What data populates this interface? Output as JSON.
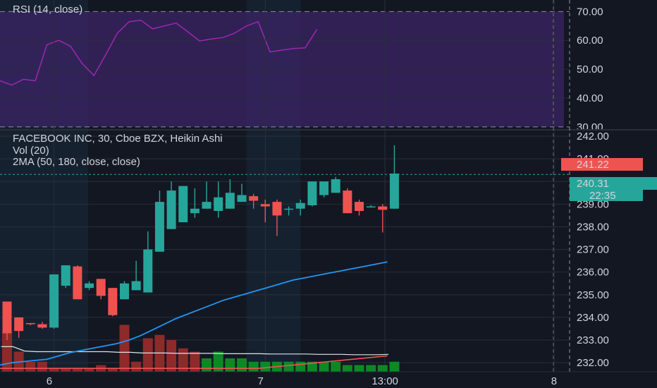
{
  "colors": {
    "background": "#131722",
    "grid": "#2a2e39",
    "up": "#26a69a",
    "down": "#ef5350",
    "rsi_line": "#9c27b0",
    "rsi_band": "#3b2466",
    "vol_up": "#0b8a23",
    "vol_down": "#8e2a2a",
    "ma_fast": "#2196f3",
    "ma_slow": "#ef5350",
    "vol_ma": "#e0e3eb",
    "session_shade": "#1a2a3d"
  },
  "chart_data": [
    {
      "type": "line",
      "title": "RSI (14, close)",
      "ylim": [
        29,
        74
      ],
      "y_ticks": [
        "70.00",
        "60.00",
        "50.00",
        "40.00",
        "30.00"
      ],
      "y_tick_values": [
        70,
        60,
        50,
        40,
        30
      ],
      "band": [
        30,
        70
      ],
      "series": [
        {
          "values": [
            46,
            44.5,
            46.5,
            46,
            58.5,
            60,
            58,
            52,
            47.8,
            55,
            62.5,
            66.5,
            67,
            64,
            65,
            66,
            63,
            59.8,
            60.5,
            61,
            62.5,
            65,
            66.5,
            56,
            56.6,
            57.2,
            57.4,
            63.8
          ]
        }
      ]
    },
    {
      "type": "candlestick",
      "title": "FACEBOOK INC, 30, Cboe BZX, Heikin Ashi",
      "indicators": [
        "Vol (20)",
        "2MA (50, 180, close, close)"
      ],
      "ylim": [
        231.6,
        242.25
      ],
      "y_ticks": [
        "242.00",
        "241.00",
        "240.00",
        "239.00",
        "238.00",
        "237.00",
        "236.00",
        "235.00",
        "234.00",
        "233.00",
        "232.00"
      ],
      "y_tick_values": [
        242,
        241,
        240,
        239,
        238,
        237,
        236,
        235,
        234,
        233,
        232
      ],
      "x_labels": [
        {
          "label": "6",
          "index": 3.6
        },
        {
          "label": "7",
          "index": 21.6
        },
        {
          "label": "13:00",
          "index": 32.2
        },
        {
          "label": "8",
          "index": 46.6
        }
      ],
      "price_badges": {
        "high_line": "241.22",
        "last": "240.31",
        "countdown": "22:35"
      },
      "candles": [
        {
          "o": 234.7,
          "h": 234.7,
          "l": 233.0,
          "c": 233.3
        },
        {
          "o": 234.0,
          "h": 234.0,
          "l": 233.1,
          "c": 233.4
        },
        {
          "o": 233.75,
          "h": 233.75,
          "l": 233.65,
          "c": 233.7
        },
        {
          "o": 233.7,
          "h": 233.8,
          "l": 233.5,
          "c": 233.55
        },
        {
          "o": 233.55,
          "h": 235.9,
          "l": 233.5,
          "c": 235.9
        },
        {
          "o": 235.4,
          "h": 236.3,
          "l": 235.3,
          "c": 236.3
        },
        {
          "o": 236.25,
          "h": 236.3,
          "l": 234.8,
          "c": 234.8
        },
        {
          "o": 235.3,
          "h": 235.6,
          "l": 235.2,
          "c": 235.5
        },
        {
          "o": 235.7,
          "h": 235.7,
          "l": 234.8,
          "c": 234.95
        },
        {
          "o": 235.3,
          "h": 235.3,
          "l": 234.05,
          "c": 234.1
        },
        {
          "o": 234.8,
          "h": 235.6,
          "l": 234.8,
          "c": 235.5
        },
        {
          "o": 235.2,
          "h": 236.5,
          "l": 235.2,
          "c": 235.6
        },
        {
          "o": 235.1,
          "h": 237.8,
          "l": 235.1,
          "c": 237.0
        },
        {
          "o": 236.9,
          "h": 239.6,
          "l": 236.9,
          "c": 239.1
        },
        {
          "o": 237.9,
          "h": 240.0,
          "l": 237.9,
          "c": 239.6
        },
        {
          "o": 238.2,
          "h": 239.8,
          "l": 238.2,
          "c": 239.8
        },
        {
          "o": 238.6,
          "h": 239.7,
          "l": 238.4,
          "c": 238.8
        },
        {
          "o": 238.8,
          "h": 240.0,
          "l": 238.8,
          "c": 239.1
        },
        {
          "o": 238.7,
          "h": 240.0,
          "l": 238.4,
          "c": 239.3
        },
        {
          "o": 238.8,
          "h": 240.1,
          "l": 238.8,
          "c": 239.5
        },
        {
          "o": 239.1,
          "h": 239.9,
          "l": 239.1,
          "c": 239.4
        },
        {
          "o": 239.35,
          "h": 239.45,
          "l": 238.8,
          "c": 239.15
        },
        {
          "o": 239.0,
          "h": 239.2,
          "l": 238.2,
          "c": 238.9
        },
        {
          "o": 239.1,
          "h": 239.2,
          "l": 237.6,
          "c": 238.5
        },
        {
          "o": 238.8,
          "h": 238.9,
          "l": 238.5,
          "c": 238.8
        },
        {
          "o": 238.8,
          "h": 239.2,
          "l": 238.5,
          "c": 239.05
        },
        {
          "o": 238.95,
          "h": 240.0,
          "l": 238.9,
          "c": 240.0
        },
        {
          "o": 239.4,
          "h": 240.0,
          "l": 239.3,
          "c": 240.0
        },
        {
          "o": 239.5,
          "h": 240.2,
          "l": 239.5,
          "c": 240.1
        },
        {
          "o": 239.6,
          "h": 239.7,
          "l": 238.6,
          "c": 238.6
        },
        {
          "o": 239.1,
          "h": 239.2,
          "l": 238.5,
          "c": 238.7
        },
        {
          "o": 238.9,
          "h": 238.95,
          "l": 238.85,
          "c": 238.9
        },
        {
          "o": 238.9,
          "h": 239.0,
          "l": 237.75,
          "c": 238.75
        },
        {
          "o": 238.8,
          "h": 241.6,
          "l": 238.8,
          "c": 240.35
        }
      ],
      "volume": {
        "ylim": [
          0,
          20
        ],
        "values": [
          12,
          6,
          3,
          3,
          1,
          1,
          1,
          1,
          2,
          1,
          14,
          3,
          10,
          11,
          9.5,
          7,
          6,
          4,
          6,
          4,
          4,
          3,
          3,
          3,
          3,
          3,
          3,
          3,
          3,
          2,
          2,
          2,
          2,
          3
        ],
        "colors": [
          "down",
          "down",
          "down",
          "down",
          "down",
          "down",
          "down",
          "down",
          "down",
          "down",
          "down",
          "down",
          "down",
          "down",
          "down",
          "down",
          "down",
          "up",
          "up",
          "up",
          "up",
          "up",
          "up",
          "up",
          "up",
          "up",
          "up",
          "up",
          "up",
          "up",
          "up",
          "up",
          "up",
          "up"
        ],
        "ma": [
          7.5,
          7.5,
          6.2,
          6.0,
          6.0,
          6.0,
          6.0,
          6.0,
          6.0,
          6.0,
          5.8,
          5.8,
          5.6,
          5.6,
          5.6,
          5.5,
          5.5,
          5.5,
          5.5,
          5.4,
          5.4,
          5.4,
          5.4,
          5.3,
          5.3,
          5.3,
          5.3,
          5.2,
          5.2,
          5.2,
          5.1,
          5.1,
          5.1,
          5.2
        ]
      },
      "ma_fast": [
        231.9,
        232.0,
        232.05,
        232.1,
        232.15,
        232.3,
        232.45,
        232.55,
        232.65,
        232.75,
        232.85,
        233.0,
        233.2,
        233.45,
        233.7,
        233.95,
        234.15,
        234.35,
        234.55,
        234.75,
        234.9,
        235.05,
        235.2,
        235.35,
        235.5,
        235.65,
        235.75,
        235.85,
        235.95,
        236.05,
        236.15,
        236.25,
        236.35,
        236.45
      ],
      "ma_slow": [
        231.0,
        231.0,
        231.05,
        231.05,
        231.1,
        231.1,
        231.15,
        231.15,
        231.2,
        231.2,
        231.25,
        231.3,
        231.3,
        231.35,
        231.4,
        231.4,
        231.45,
        231.5,
        231.55,
        231.6,
        231.65,
        231.7,
        231.75,
        231.8,
        231.85,
        231.9,
        231.95,
        232.0,
        232.05,
        232.1,
        232.15,
        232.2,
        232.25,
        232.3
      ]
    }
  ]
}
